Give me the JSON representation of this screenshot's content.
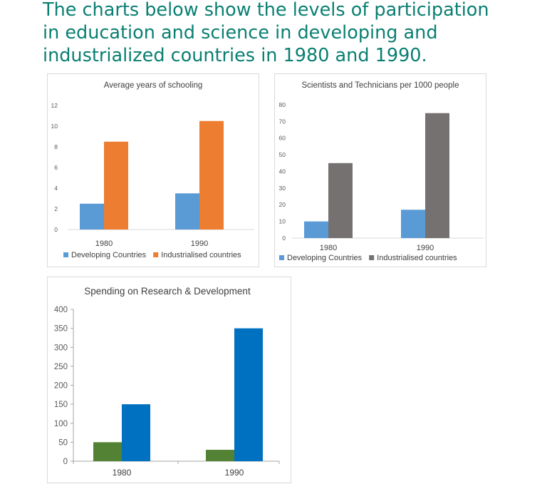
{
  "heading": {
    "lines": [
      "The charts below show the levels of participation",
      "in education and science in developing and",
      "industrialized countries in 1980 and 1990."
    ]
  },
  "chart_data": [
    {
      "id": "schooling",
      "type": "bar",
      "title": "Average years of schooling",
      "categories": [
        "1980",
        "1990"
      ],
      "series": [
        {
          "name": "Developing Countries",
          "values": [
            2.5,
            3.5
          ],
          "color": "#5b9bd5"
        },
        {
          "name": "Industrialised countries",
          "values": [
            8.5,
            10.5
          ],
          "color": "#ed7d31"
        }
      ],
      "ylim": [
        0,
        12
      ],
      "yticks": [
        0,
        2,
        4,
        6,
        8,
        10,
        12
      ],
      "xlabel": "",
      "ylabel": "",
      "grid": false,
      "legend": "bottom"
    },
    {
      "id": "scientists",
      "type": "bar",
      "title": "Scientists and Technicians per 1000 people",
      "categories": [
        "1980",
        "1990"
      ],
      "series": [
        {
          "name": "Developing Countries",
          "values": [
            10,
            17
          ],
          "color": "#5b9bd5"
        },
        {
          "name": "Industrialised countries",
          "values": [
            45,
            75
          ],
          "color": "#767171"
        }
      ],
      "ylim": [
        0,
        80
      ],
      "yticks": [
        0,
        10,
        20,
        30,
        40,
        50,
        60,
        70,
        80
      ],
      "xlabel": "",
      "ylabel": "",
      "grid": false,
      "legend": "bottom"
    },
    {
      "id": "spending",
      "type": "bar",
      "title": "Spending on Research & Development",
      "categories": [
        "1980",
        "1990"
      ],
      "series": [
        {
          "values": [
            50,
            30
          ],
          "color": "#548235"
        },
        {
          "values": [
            150,
            350
          ],
          "color": "#0070c0"
        }
      ],
      "ylim": [
        0,
        400
      ],
      "yticks": [
        0,
        50,
        100,
        150,
        200,
        250,
        300,
        350,
        400
      ],
      "xlabel": "",
      "ylabel": "",
      "grid": false,
      "legend": "none"
    }
  ]
}
